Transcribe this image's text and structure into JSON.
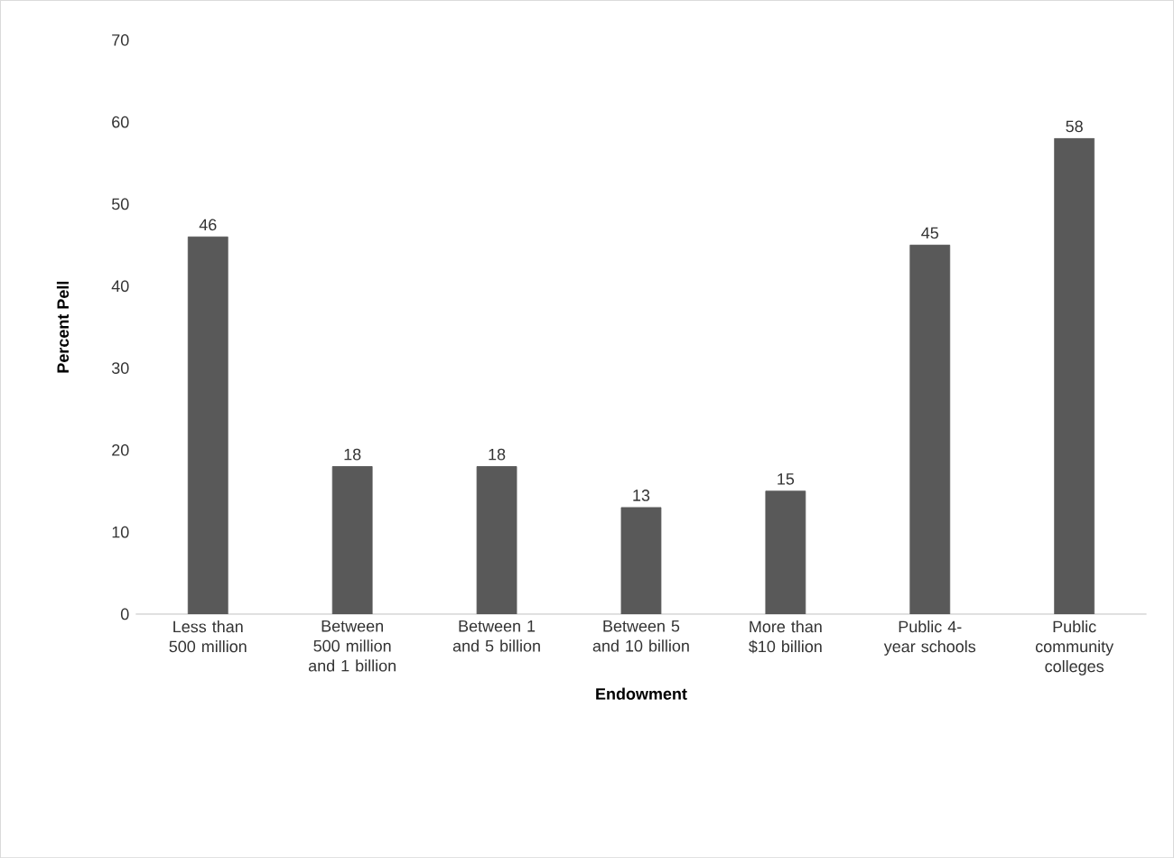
{
  "chart_data": {
    "type": "bar",
    "categories": [
      "Less than 500 million",
      "Between 500 million and 1 billion",
      "Between 1 and 5 billion",
      "Between 5 and 10 billion",
      "More than $10 billion",
      "Public 4-year schools",
      "Public community colleges"
    ],
    "values": [
      46,
      18,
      18,
      13,
      15,
      45,
      58
    ],
    "color": "#595959",
    "xlabel": "Endowment",
    "ylabel": "Percent Pell",
    "ylim": [
      0,
      70
    ],
    "yticks": [
      0,
      10,
      20,
      30,
      40,
      50,
      60,
      70
    ],
    "data_labels": true
  }
}
